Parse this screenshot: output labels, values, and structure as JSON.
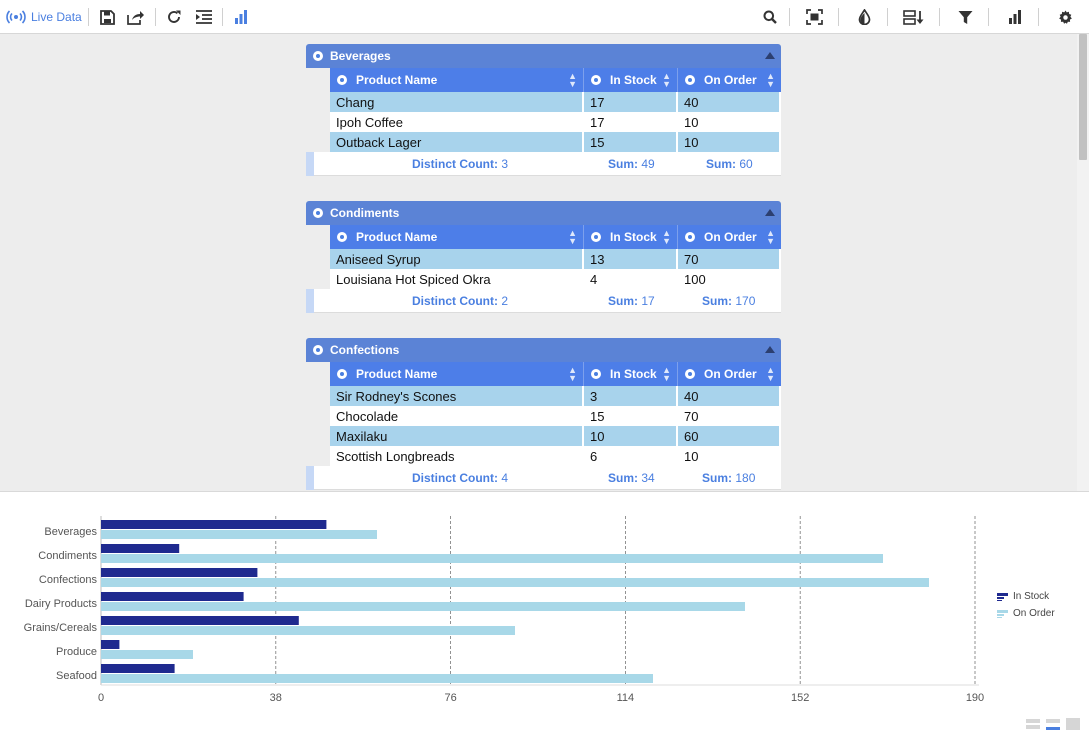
{
  "toolbar": {
    "live_label": "Live Data",
    "icons": [
      "broadcast-icon",
      "save-icon",
      "export-icon",
      "refresh-icon",
      "indent-list-icon",
      "bar-chart-icon",
      "search-icon",
      "fit-selection-icon",
      "color-drop-icon",
      "sort-fields-icon",
      "filter-icon",
      "chart-view-icon",
      "gear-icon"
    ]
  },
  "colors": {
    "accent": "#4a7fe0",
    "group_header": "#5b83d6",
    "col_header": "#4d7ee8",
    "row_alt": "#a8d3ec",
    "in_stock": "#1f2a8f",
    "on_order": "#a8d8e8"
  },
  "columns": {
    "name": "Product Name",
    "stock": "In Stock",
    "order": "On Order"
  },
  "groups": [
    {
      "title": "Beverages",
      "rows": [
        {
          "name": "Chang",
          "stock": "17",
          "order": "40"
        },
        {
          "name": "Ipoh Coffee",
          "stock": "17",
          "order": "10"
        },
        {
          "name": "Outback Lager",
          "stock": "15",
          "order": "10"
        }
      ],
      "summary": {
        "count_label": "Distinct Count:",
        "count": "3",
        "stock_label": "Sum:",
        "stock_sum": "49",
        "order_label": "Sum:",
        "order_sum": "60"
      }
    },
    {
      "title": "Condiments",
      "rows": [
        {
          "name": "Aniseed Syrup",
          "stock": "13",
          "order": "70"
        },
        {
          "name": "Louisiana Hot Spiced Okra",
          "stock": "4",
          "order": "100"
        }
      ],
      "summary": {
        "count_label": "Distinct Count:",
        "count": "2",
        "stock_label": "Sum:",
        "stock_sum": "17",
        "order_label": "Sum:",
        "order_sum": "170"
      }
    },
    {
      "title": "Confections",
      "rows": [
        {
          "name": "Sir Rodney's Scones",
          "stock": "3",
          "order": "40"
        },
        {
          "name": "Chocolade",
          "stock": "15",
          "order": "70"
        },
        {
          "name": "Maxilaku",
          "stock": "10",
          "order": "60"
        },
        {
          "name": "Scottish Longbreads",
          "stock": "6",
          "order": "10"
        }
      ],
      "summary": {
        "count_label": "Distinct Count:",
        "count": "4",
        "stock_label": "Sum:",
        "stock_sum": "34",
        "order_label": "Sum:",
        "order_sum": "180"
      }
    }
  ],
  "chart_data": {
    "type": "bar",
    "orientation": "horizontal",
    "categories": [
      "Beverages",
      "Condiments",
      "Confections",
      "Dairy Products",
      "Grains/Cereals",
      "Produce",
      "Seafood"
    ],
    "series": [
      {
        "name": "In Stock",
        "values": [
          49,
          17,
          34,
          31,
          43,
          4,
          16
        ]
      },
      {
        "name": "On Order",
        "values": [
          60,
          170,
          180,
          140,
          90,
          20,
          120
        ]
      }
    ],
    "xticks": [
      "0",
      "38",
      "76",
      "114",
      "152",
      "190"
    ],
    "xlim": [
      0,
      190
    ],
    "grid": "vertical dashed",
    "legend_placement": "right"
  }
}
